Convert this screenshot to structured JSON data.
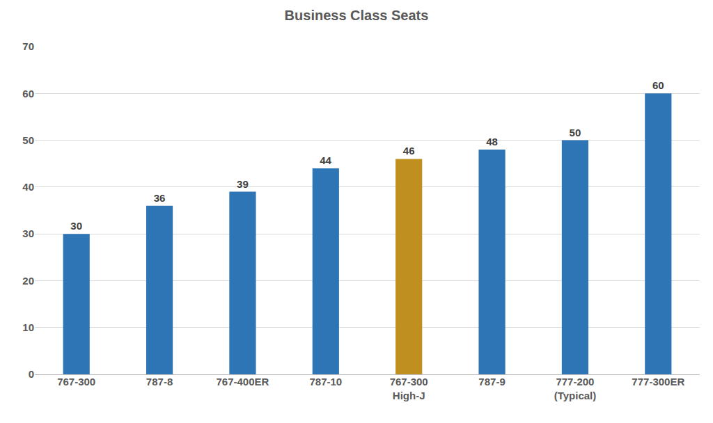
{
  "chart_data": {
    "type": "bar",
    "title": "Business Class Seats",
    "categories": [
      "767-300",
      "787-8",
      "767-400ER",
      "787-10",
      "767-300 High-J",
      "787-9",
      "777-200 (Typical)",
      "777-300ER"
    ],
    "values": [
      30,
      36,
      39,
      44,
      46,
      48,
      50,
      60
    ],
    "colors": [
      "#2e75b6",
      "#2e75b6",
      "#2e75b6",
      "#2e75b6",
      "#bf8f1f",
      "#2e75b6",
      "#2e75b6",
      "#2e75b6"
    ],
    "ylim": [
      0,
      70
    ],
    "yticks": [
      0,
      10,
      20,
      30,
      40,
      50,
      60,
      70
    ],
    "grid": true,
    "data_labels": true
  }
}
